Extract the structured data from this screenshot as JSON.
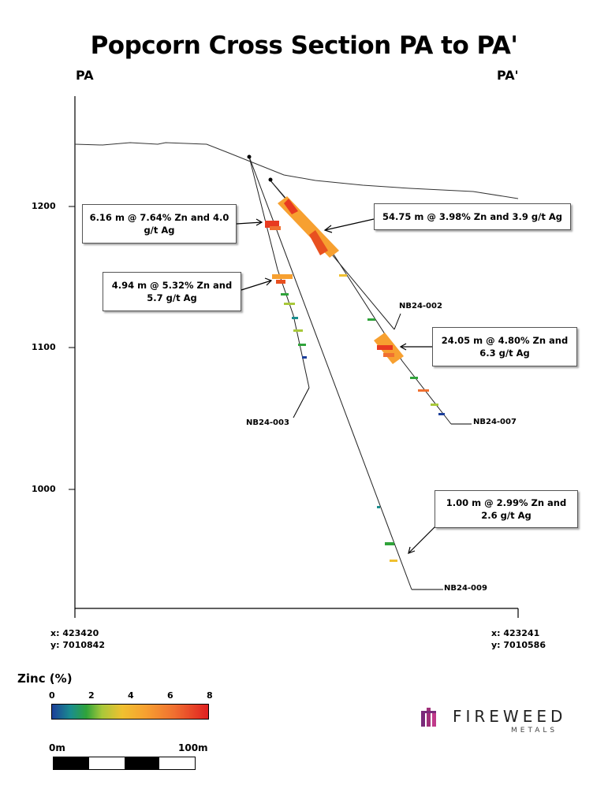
{
  "title": "Popcorn Cross Section PA to PA'",
  "section_ends": {
    "left": "PA",
    "right": "PA'"
  },
  "elevation_ticks": [
    "1200",
    "1100",
    "1000"
  ],
  "coordinates": {
    "left": {
      "x": "x: 423420",
      "y": "y: 7010842"
    },
    "right": {
      "x": "x: 423241",
      "y": "y: 7010586"
    }
  },
  "callouts": [
    {
      "text": "6.16 m @ 7.64% Zn and 4.0 g/t Ag"
    },
    {
      "text": "54.75 m @ 3.98% Zn and 3.9 g/t Ag"
    },
    {
      "text": "4.94 m @ 5.32% Zn and 5.7 g/t Ag"
    },
    {
      "text": "24.05 m @ 4.80% Zn and 6.3 g/t Ag"
    },
    {
      "text": "1.00 m @ 2.99% Zn and 2.6 g/t Ag"
    }
  ],
  "drill_holes": [
    "NB24-002",
    "NB24-003",
    "NB24-007",
    "NB24-009"
  ],
  "legend": {
    "title": "Zinc (%)",
    "ticks": [
      "0",
      "2",
      "4",
      "6",
      "8"
    ],
    "colors": [
      "#1c3f9a",
      "#1a8e8e",
      "#2fa33a",
      "#a8c83a",
      "#f0c030",
      "#f7a030",
      "#f07030",
      "#e02020"
    ]
  },
  "scale_bar": {
    "start": "0m",
    "end": "100m"
  },
  "logo": {
    "name": "FIREWEED",
    "sub": "METALS",
    "icon": "fireweed-logo-icon",
    "color": "#7a2a7a"
  }
}
